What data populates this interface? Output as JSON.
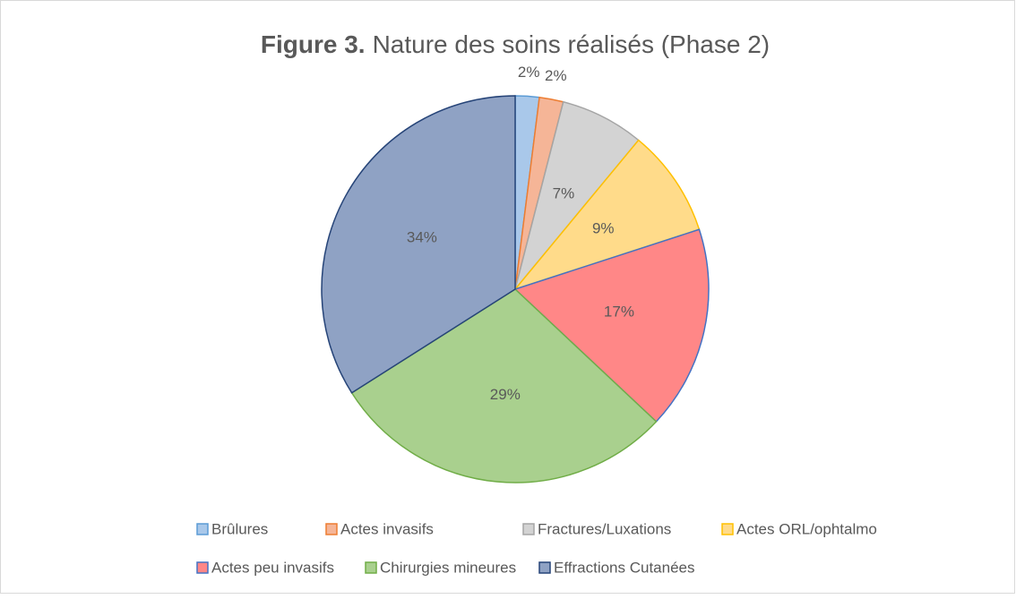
{
  "chart_data": {
    "type": "pie",
    "title_label": "Figure 3.",
    "title": "Nature des soins réalisés (Phase 2)",
    "categories": [
      "Brûlures",
      "Actes invasifs",
      "Fractures/Luxations",
      "Actes ORL/ophtalmo",
      "Actes peu invasifs",
      "Chirurgies mineures",
      "Effractions Cutanées"
    ],
    "values": [
      2,
      2,
      7,
      9,
      17,
      29,
      34
    ],
    "value_labels": [
      "2%",
      "2%",
      "7%",
      "9%",
      "17%",
      "29%",
      "34%"
    ],
    "colors": [
      "#a9c8ea",
      "#f5b597",
      "#d3d3d3",
      "#ffdb8a",
      "#ff8787",
      "#a9d08e",
      "#8fa2c4"
    ],
    "edge_colors": [
      "#5b9bd5",
      "#ed7d31",
      "#a5a5a5",
      "#ffc000",
      "#4472c4",
      "#70ad47",
      "#264478"
    ],
    "legend": "bottom"
  }
}
